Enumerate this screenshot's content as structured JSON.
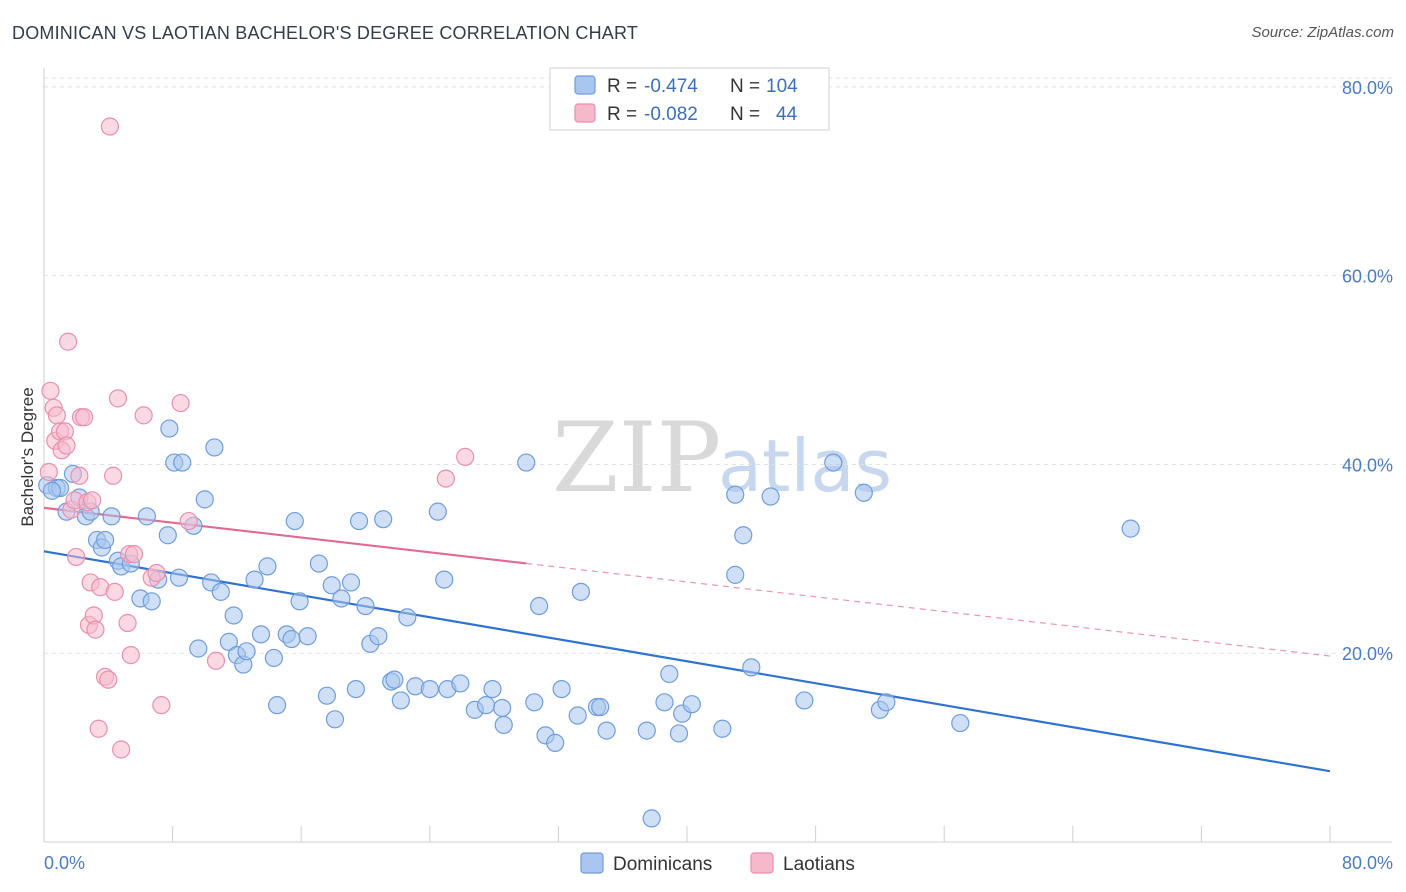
{
  "title": "DOMINICAN VS LAOTIAN BACHELOR'S DEGREE CORRELATION CHART",
  "source": "Source: ZipAtlas.com",
  "watermark": {
    "zip": "ZIP",
    "atlas": "atlas"
  },
  "colors": {
    "dominicans_fill": "#a8c6ef",
    "dominicans_stroke": "#6f9ddc",
    "dominicans_line": "#2f72d0",
    "laotians_fill": "#f6b9cc",
    "laotians_stroke": "#ea8fae",
    "laotians_line": "#e06a92",
    "grid": "#e2e2e2",
    "axis_text": "#4a7cc4"
  },
  "legend": {
    "rows": [
      {
        "r_label": "R = ",
        "r_value": "-0.474",
        "n_label": "N = ",
        "n_value": "104"
      },
      {
        "r_label": "R = ",
        "r_value": "-0.082",
        "n_label": "N = ",
        "n_value": "44"
      }
    ]
  },
  "chart_data": {
    "type": "scatter",
    "title": "DOMINICAN VS LAOTIAN BACHELOR'S DEGREE CORRELATION CHART",
    "xlabel": "",
    "ylabel": "Bachelor's Degree",
    "xlim": [
      0,
      80
    ],
    "ylim": [
      0,
      82
    ],
    "x_tick_labels": [
      "0.0%",
      "80.0%"
    ],
    "y_ticks": [
      20,
      40,
      60,
      80
    ],
    "y_tick_labels": [
      "20.0%",
      "40.0%",
      "60.0%",
      "80.0%"
    ],
    "grid": true,
    "legend_position": "top-center",
    "series": [
      {
        "name": "Dominicans",
        "r": -0.474,
        "n": 104,
        "trend": {
          "x": [
            0,
            80
          ],
          "y": [
            30.8,
            7.5
          ]
        },
        "points": [
          [
            0.2,
            37.8
          ],
          [
            0.8,
            37.5
          ],
          [
            1.0,
            37.5
          ],
          [
            1.4,
            35.0
          ],
          [
            1.8,
            39.0
          ],
          [
            2.2,
            36.5
          ],
          [
            2.6,
            34.5
          ],
          [
            2.9,
            35.0
          ],
          [
            3.3,
            32.0
          ],
          [
            3.6,
            31.2
          ],
          [
            3.8,
            32.0
          ],
          [
            4.2,
            34.5
          ],
          [
            4.6,
            29.8
          ],
          [
            4.8,
            29.2
          ],
          [
            5.4,
            29.5
          ],
          [
            6.0,
            25.8
          ],
          [
            6.4,
            34.5
          ],
          [
            6.7,
            25.5
          ],
          [
            7.1,
            27.8
          ],
          [
            7.7,
            32.5
          ],
          [
            7.8,
            43.8
          ],
          [
            8.1,
            40.2
          ],
          [
            8.4,
            28.0
          ],
          [
            8.6,
            40.2
          ],
          [
            9.3,
            33.5
          ],
          [
            9.6,
            20.5
          ],
          [
            10.0,
            36.3
          ],
          [
            10.4,
            27.5
          ],
          [
            10.6,
            41.8
          ],
          [
            11.0,
            26.5
          ],
          [
            11.5,
            21.2
          ],
          [
            11.8,
            24.0
          ],
          [
            12.0,
            19.8
          ],
          [
            12.4,
            18.8
          ],
          [
            12.6,
            20.2
          ],
          [
            13.1,
            27.8
          ],
          [
            13.5,
            22.0
          ],
          [
            13.9,
            29.2
          ],
          [
            14.3,
            19.5
          ],
          [
            14.5,
            14.5
          ],
          [
            15.1,
            22.0
          ],
          [
            15.4,
            21.5
          ],
          [
            15.6,
            34.0
          ],
          [
            15.9,
            25.5
          ],
          [
            16.4,
            21.8
          ],
          [
            17.1,
            29.5
          ],
          [
            17.6,
            15.5
          ],
          [
            17.9,
            27.2
          ],
          [
            18.1,
            13.0
          ],
          [
            18.5,
            25.8
          ],
          [
            19.1,
            27.5
          ],
          [
            19.4,
            16.2
          ],
          [
            19.6,
            34.0
          ],
          [
            20.0,
            25.0
          ],
          [
            20.3,
            21.0
          ],
          [
            20.8,
            21.8
          ],
          [
            21.1,
            34.2
          ],
          [
            21.6,
            17.0
          ],
          [
            21.8,
            17.2
          ],
          [
            22.2,
            15.0
          ],
          [
            22.6,
            23.8
          ],
          [
            23.1,
            16.5
          ],
          [
            24.0,
            16.2
          ],
          [
            24.5,
            35.0
          ],
          [
            24.9,
            27.8
          ],
          [
            25.1,
            16.2
          ],
          [
            25.9,
            16.8
          ],
          [
            26.8,
            14.0
          ],
          [
            27.5,
            14.5
          ],
          [
            27.9,
            16.2
          ],
          [
            28.5,
            14.2
          ],
          [
            28.6,
            12.4
          ],
          [
            30.0,
            40.2
          ],
          [
            30.5,
            14.8
          ],
          [
            30.8,
            25.0
          ],
          [
            31.2,
            11.3
          ],
          [
            31.8,
            10.5
          ],
          [
            32.2,
            16.2
          ],
          [
            33.2,
            13.4
          ],
          [
            33.4,
            26.5
          ],
          [
            34.4,
            14.3
          ],
          [
            34.6,
            14.3
          ],
          [
            35.0,
            11.8
          ],
          [
            37.5,
            11.8
          ],
          [
            37.8,
            2.5
          ],
          [
            38.6,
            14.8
          ],
          [
            38.9,
            17.8
          ],
          [
            39.5,
            11.5
          ],
          [
            39.7,
            13.6
          ],
          [
            40.3,
            14.6
          ],
          [
            42.2,
            12.0
          ],
          [
            43.0,
            36.8
          ],
          [
            43.0,
            28.3
          ],
          [
            43.5,
            32.5
          ],
          [
            44.0,
            18.5
          ],
          [
            45.2,
            36.6
          ],
          [
            47.3,
            15.0
          ],
          [
            49.1,
            40.2
          ],
          [
            51.0,
            37.0
          ],
          [
            52.0,
            14.0
          ],
          [
            52.4,
            14.8
          ],
          [
            57.0,
            12.6
          ],
          [
            67.6,
            33.2
          ],
          [
            0.5,
            37.2
          ]
        ]
      },
      {
        "name": "Laotians",
        "r": -0.082,
        "n": 44,
        "trend": {
          "x": [
            0,
            80
          ],
          "y": [
            35.4,
            19.7
          ]
        },
        "trend_solid_until_x": 30,
        "points": [
          [
            0.3,
            39.2
          ],
          [
            0.4,
            47.8
          ],
          [
            0.6,
            46.0
          ],
          [
            0.7,
            42.5
          ],
          [
            0.8,
            45.2
          ],
          [
            1.0,
            43.5
          ],
          [
            1.1,
            41.5
          ],
          [
            1.3,
            43.5
          ],
          [
            1.4,
            42.0
          ],
          [
            1.5,
            53.0
          ],
          [
            1.7,
            35.2
          ],
          [
            1.9,
            36.2
          ],
          [
            2.0,
            30.2
          ],
          [
            2.2,
            38.8
          ],
          [
            2.3,
            45.0
          ],
          [
            2.5,
            45.0
          ],
          [
            2.7,
            36.0
          ],
          [
            2.8,
            23.0
          ],
          [
            2.9,
            27.5
          ],
          [
            3.0,
            36.2
          ],
          [
            3.1,
            24.0
          ],
          [
            3.2,
            22.5
          ],
          [
            3.4,
            12.0
          ],
          [
            3.5,
            27.0
          ],
          [
            3.8,
            17.5
          ],
          [
            4.0,
            17.2
          ],
          [
            4.3,
            38.8
          ],
          [
            4.4,
            26.5
          ],
          [
            4.6,
            47.0
          ],
          [
            4.8,
            9.8
          ],
          [
            5.2,
            23.2
          ],
          [
            5.3,
            30.5
          ],
          [
            5.4,
            19.8
          ],
          [
            5.6,
            30.5
          ],
          [
            6.2,
            45.2
          ],
          [
            6.7,
            28.0
          ],
          [
            7.0,
            28.5
          ],
          [
            7.3,
            14.5
          ],
          [
            8.5,
            46.5
          ],
          [
            9.0,
            34.0
          ],
          [
            10.7,
            19.2
          ],
          [
            25.0,
            38.5
          ],
          [
            26.2,
            40.8
          ],
          [
            4.1,
            75.8
          ]
        ]
      }
    ]
  }
}
